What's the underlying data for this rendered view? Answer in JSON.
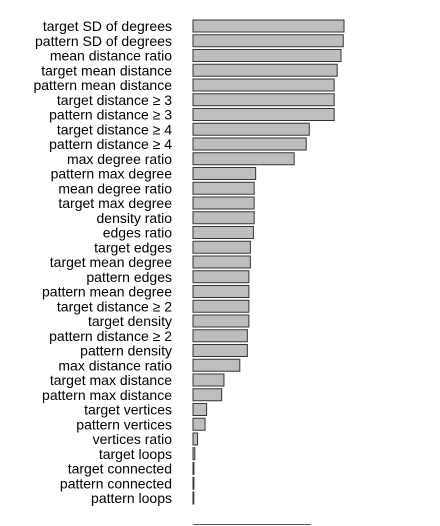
{
  "chart_data": {
    "type": "bar",
    "orientation": "horizontal",
    "bar_color": "#bebebe",
    "bar_edge_color": "#333333",
    "grid": false,
    "xlim": [
      0,
      1
    ],
    "categories": [
      "target SD of degrees",
      "pattern SD of degrees",
      "mean distance ratio",
      "target mean distance",
      "pattern mean distance",
      "target distance ≥ 3",
      "pattern distance ≥ 3",
      "target distance ≥ 4",
      "pattern distance ≥ 4",
      "max degree ratio",
      "pattern max degree",
      "mean degree ratio",
      "target max degree",
      "density ratio",
      "edges ratio",
      "target edges",
      "target mean degree",
      "pattern edges",
      "pattern mean degree",
      "target distance ≥ 2",
      "target density",
      "pattern distance ≥ 2",
      "pattern density",
      "max distance ratio",
      "target max distance",
      "pattern max distance",
      "target vertices",
      "pattern vertices",
      "vertices ratio",
      "target loops",
      "target connected",
      "pattern connected",
      "pattern loops"
    ],
    "values": [
      1.0,
      0.995,
      0.98,
      0.955,
      0.935,
      0.935,
      0.935,
      0.77,
      0.75,
      0.67,
      0.415,
      0.405,
      0.405,
      0.405,
      0.4,
      0.38,
      0.38,
      0.37,
      0.37,
      0.37,
      0.37,
      0.36,
      0.36,
      0.31,
      0.205,
      0.19,
      0.09,
      0.08,
      0.03,
      0.012,
      0.006,
      0.006,
      0.004
    ]
  }
}
